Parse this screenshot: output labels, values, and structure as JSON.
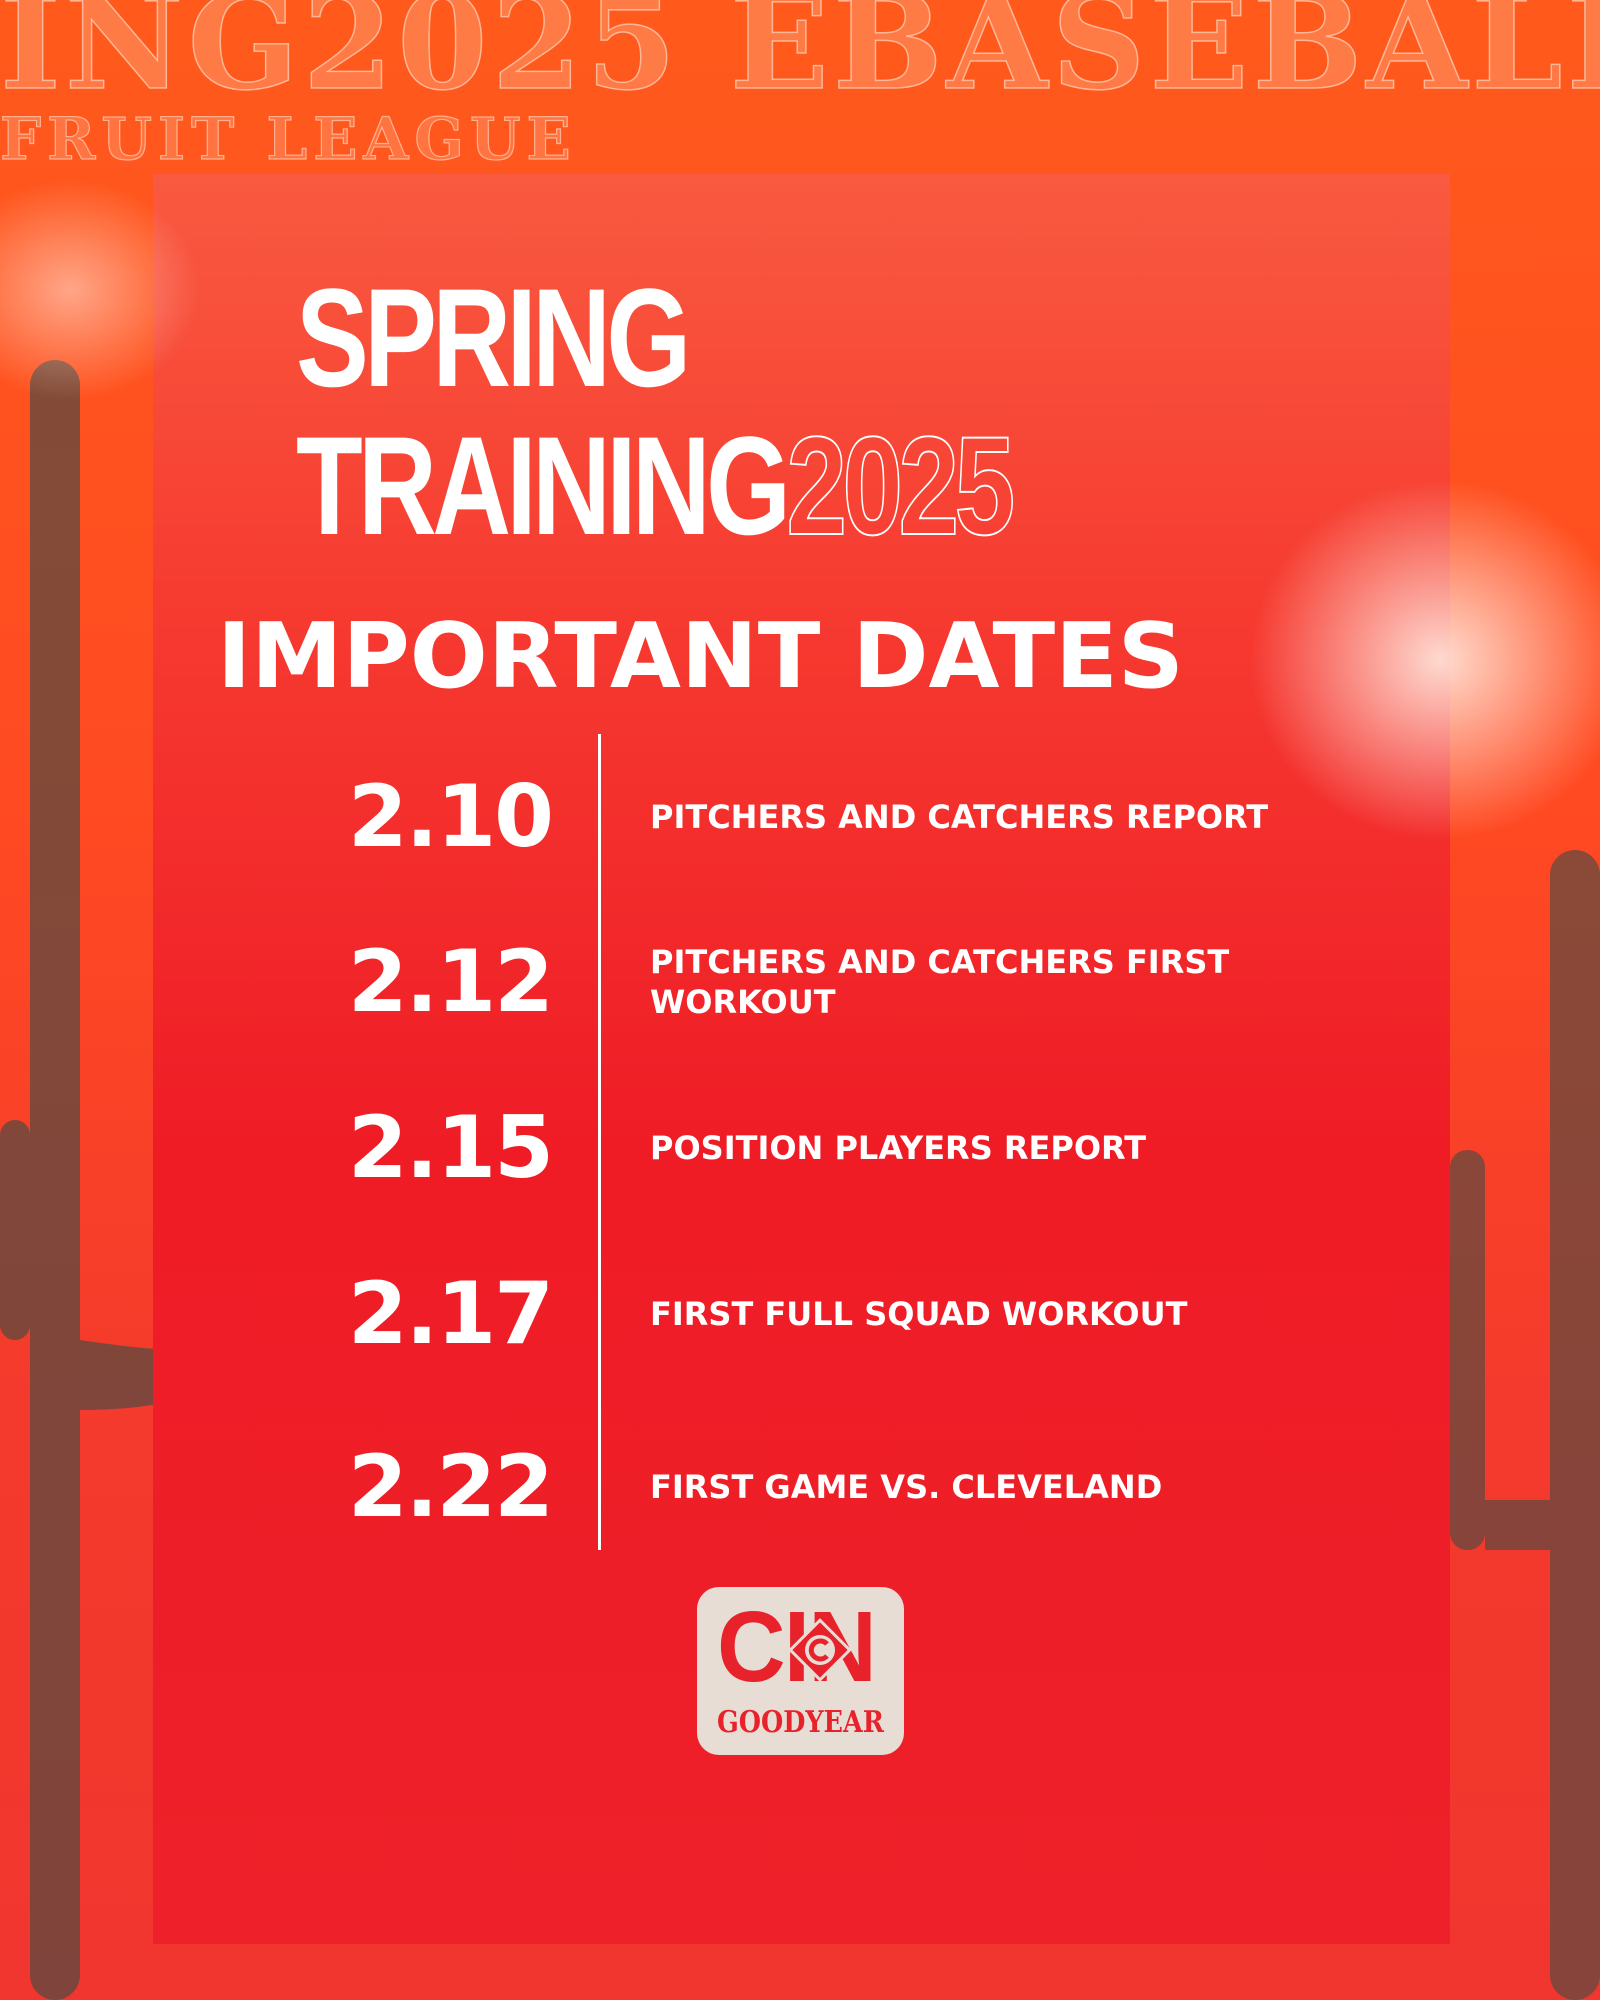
{
  "background": {
    "watermark_line1": "ING2025 EBASEBALL",
    "watermark_line2": "FRUIT LEAGUE"
  },
  "title": {
    "line1": "SPRING",
    "line2": "TRAINING",
    "year": "2025",
    "subtitle": "IMPORTANT DATES"
  },
  "dates": [
    {
      "date": "2.10",
      "event": "PITCHERS AND CATCHERS REPORT"
    },
    {
      "date": "2.12",
      "event": "PITCHERS AND CATCHERS FIRST WORKOUT"
    },
    {
      "date": "2.15",
      "event": "POSITION PLAYERS REPORT"
    },
    {
      "date": "2.17",
      "event": "FIRST FULL SQUAD WORKOUT"
    },
    {
      "date": "2.22",
      "event": "FIRST GAME VS. CLEVELAND"
    }
  ],
  "logo": {
    "top": "CIN",
    "emblem": "C",
    "bottom": "GOODYEAR"
  },
  "colors": {
    "primary_red": "#ee1c25",
    "orange": "#ff5a1c",
    "cream": "#e8ddd5"
  }
}
